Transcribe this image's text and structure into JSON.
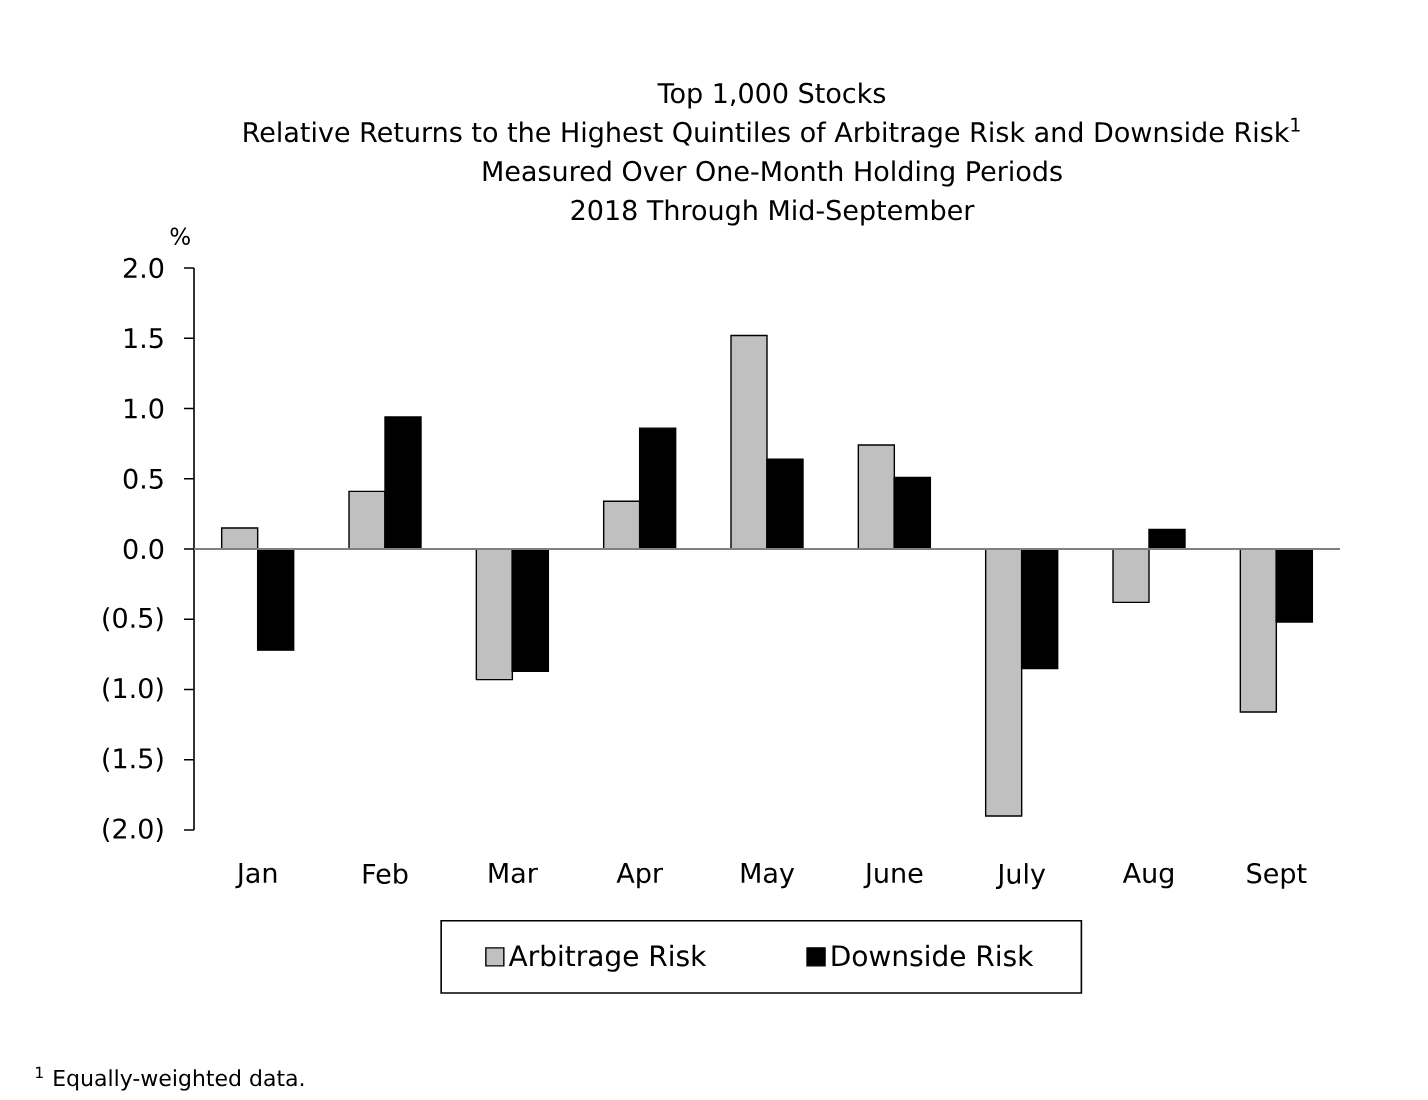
{
  "chart_data": {
    "type": "bar",
    "title": "Top 1,000 Stocks",
    "subtitle": "Relative Returns to the Highest Quintiles of Arbitrage Risk and Downside Risk$^{1}$\nMeasured Over One-Month Holding Periods\n2018 Through Mid-September",
    "ylabel": "%",
    "categories": [
      "Jan",
      "Feb",
      "Mar",
      "Apr",
      "May",
      "June",
      "July",
      "Aug",
      "Sept"
    ],
    "series": [
      {
        "name": "Arbitrage Risk",
        "color": "#c0c0c0",
        "values": [
          0.15,
          0.41,
          -0.93,
          0.34,
          1.52,
          0.74,
          -1.9,
          -0.38,
          -1.16
        ]
      },
      {
        "name": "Downside Risk",
        "color": "#000000",
        "values": [
          -0.72,
          0.94,
          -0.87,
          0.86,
          0.64,
          0.51,
          -0.85,
          0.14,
          -0.52
        ]
      }
    ],
    "ylim": [
      -2,
      2
    ],
    "yticks": [
      {
        "value": 2,
        "label": "2.0"
      },
      1.5,
      {
        "value": 1,
        "label": "1.0"
      },
      0.5,
      {
        "value": 0,
        "label": "0.0"
      },
      {
        "value": -0.5,
        "label": "(0.5)"
      },
      {
        "value": -1,
        "label": "(1.0)"
      },
      {
        "value": -1.5,
        "label": "(1.5)"
      },
      {
        "value": -2,
        "label": "(2.0)"
      }
    ],
    "legend": "bottom",
    "annotations": [
      "$^{1}$ Equally-weighted data."
    ]
  }
}
